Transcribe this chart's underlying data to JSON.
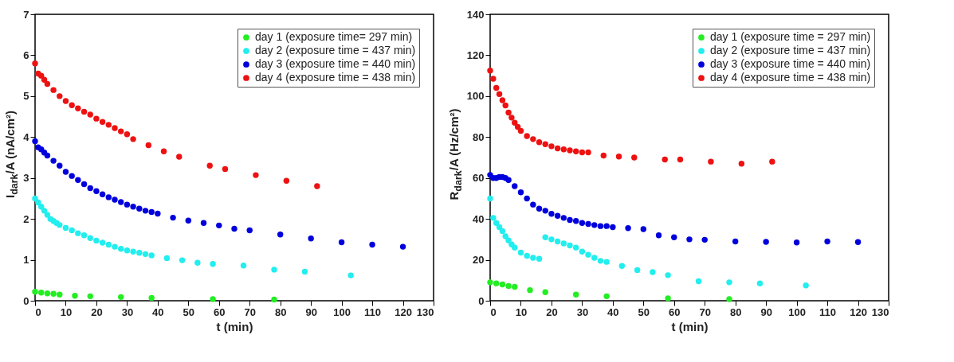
{
  "chart_data": [
    {
      "type": "scatter",
      "xlabel": "t (min)",
      "ylabel": "I$_{dark}$/A (nA/cm²)",
      "xlim": [
        0,
        130
      ],
      "xticks": [
        0,
        10,
        20,
        30,
        40,
        50,
        60,
        70,
        80,
        90,
        100,
        110,
        120,
        130
      ],
      "ylim": [
        0,
        7
      ],
      "yticks": [
        0,
        1,
        2,
        3,
        4,
        5,
        6,
        7
      ],
      "grid": false,
      "legend": "top right",
      "marker": "circle",
      "series": [
        {
          "name": "day 1 (exposure time= 297 min)",
          "color": "#22ee22",
          "x": [
            0,
            2,
            4,
            6,
            8,
            13,
            18,
            28,
            38,
            58,
            78
          ],
          "values": [
            0.22,
            0.2,
            0.18,
            0.17,
            0.15,
            0.12,
            0.11,
            0.09,
            0.07,
            0.04,
            0.03
          ]
        },
        {
          "name": "day 2 (exposure time = 437 min)",
          "color": "#22eeee",
          "x": [
            0,
            1,
            2,
            3,
            4,
            5,
            6,
            7,
            8,
            10,
            12,
            14,
            16,
            18,
            20,
            22,
            24,
            26,
            28,
            30,
            32,
            34,
            36,
            38,
            43,
            48,
            53,
            58,
            68,
            78,
            88,
            103
          ],
          "values": [
            2.5,
            2.4,
            2.3,
            2.2,
            2.1,
            2.0,
            1.95,
            1.9,
            1.85,
            1.78,
            1.72,
            1.65,
            1.6,
            1.53,
            1.47,
            1.42,
            1.37,
            1.32,
            1.27,
            1.23,
            1.2,
            1.17,
            1.14,
            1.11,
            1.04,
            0.99,
            0.93,
            0.9,
            0.86,
            0.76,
            0.71,
            0.62
          ]
        },
        {
          "name": "day 3 (exposure time = 440 min)",
          "color": "#0000dd",
          "x": [
            0,
            1,
            2,
            3,
            4,
            6,
            8,
            10,
            12,
            14,
            16,
            18,
            20,
            22,
            24,
            26,
            28,
            30,
            32,
            34,
            36,
            38,
            40,
            45,
            50,
            55,
            60,
            65,
            70,
            80,
            90,
            100,
            110,
            120
          ],
          "values": [
            3.9,
            3.75,
            3.7,
            3.62,
            3.55,
            3.42,
            3.3,
            3.15,
            3.05,
            2.95,
            2.85,
            2.75,
            2.68,
            2.6,
            2.53,
            2.47,
            2.41,
            2.35,
            2.3,
            2.25,
            2.2,
            2.17,
            2.13,
            2.03,
            1.96,
            1.9,
            1.84,
            1.76,
            1.72,
            1.62,
            1.52,
            1.43,
            1.37,
            1.32
          ]
        },
        {
          "name": "day 4 (exposure time = 438 min)",
          "color": "#ee1111",
          "x": [
            0,
            1,
            2,
            3,
            4,
            6,
            8,
            10,
            12,
            14,
            16,
            18,
            20,
            22,
            24,
            26,
            28,
            30,
            32,
            37,
            42,
            47,
            57,
            62,
            72,
            82,
            92
          ],
          "values": [
            5.8,
            5.55,
            5.5,
            5.4,
            5.3,
            5.15,
            5.0,
            4.88,
            4.78,
            4.7,
            4.62,
            4.55,
            4.45,
            4.37,
            4.3,
            4.22,
            4.14,
            4.07,
            3.95,
            3.8,
            3.65,
            3.52,
            3.3,
            3.22,
            3.07,
            2.93,
            2.8
          ]
        }
      ]
    },
    {
      "type": "scatter",
      "xlabel": "t (min)",
      "ylabel": "R$_{dark}$/A (Hz/cm²)",
      "xlim": [
        0,
        130
      ],
      "xticks": [
        0,
        10,
        20,
        30,
        40,
        50,
        60,
        70,
        80,
        90,
        100,
        110,
        120,
        130
      ],
      "ylim": [
        0,
        140
      ],
      "yticks": [
        0,
        20,
        40,
        60,
        80,
        100,
        120,
        140
      ],
      "grid": false,
      "legend": "top right",
      "marker": "circle",
      "series": [
        {
          "name": "day 1 (exposure time = 297 min)",
          "color": "#22ee22",
          "x": [
            0,
            2,
            4,
            6,
            8,
            13,
            18,
            28,
            38,
            58,
            78
          ],
          "values": [
            9,
            8.5,
            8,
            7.2,
            6.8,
            5.2,
            4.2,
            3,
            2.2,
            1.2,
            0.8
          ]
        },
        {
          "name": "day 2 (exposure time = 437 min)",
          "color": "#22eeee",
          "x": [
            0,
            1,
            2,
            3,
            4,
            5,
            6,
            7,
            8,
            10,
            12,
            14,
            16,
            18,
            20,
            22,
            24,
            26,
            28,
            30,
            32,
            34,
            36,
            38,
            43,
            48,
            53,
            58,
            68,
            78,
            88,
            103
          ],
          "values": [
            50,
            40.5,
            38,
            36,
            34,
            31.5,
            29.5,
            27.5,
            26,
            23.5,
            22,
            21,
            20.5,
            31,
            30,
            29,
            28,
            27,
            26,
            24,
            22.5,
            21,
            19.5,
            19,
            17,
            15,
            14,
            12.5,
            9.5,
            9,
            8.5,
            7.5
          ]
        },
        {
          "name": "day 3 (exposure time = 440 min)",
          "color": "#0000dd",
          "x": [
            0,
            1,
            2,
            3,
            4,
            5,
            6,
            8,
            10,
            12,
            14,
            16,
            18,
            20,
            22,
            24,
            26,
            28,
            30,
            32,
            34,
            36,
            38,
            40,
            45,
            50,
            55,
            60,
            65,
            70,
            80,
            90,
            100,
            110,
            120
          ],
          "values": [
            61.5,
            60,
            60,
            60.5,
            60.5,
            60,
            59,
            56,
            53,
            50,
            47,
            45,
            44,
            42.5,
            41.5,
            40.5,
            39.5,
            39,
            38,
            37.5,
            37,
            36.5,
            36.5,
            36,
            35.5,
            35,
            32,
            31,
            30,
            29.8,
            29,
            28.8,
            28.5,
            29,
            28.7
          ]
        },
        {
          "name": "day 4 (exposure time = 438 min)",
          "color": "#ee1111",
          "x": [
            0,
            1,
            2,
            3,
            4,
            5,
            6,
            7,
            8,
            9,
            10,
            12,
            14,
            16,
            18,
            20,
            22,
            24,
            26,
            28,
            30,
            32,
            37,
            42,
            47,
            57,
            62,
            72,
            82,
            92
          ],
          "values": [
            112.5,
            108.5,
            104,
            101,
            98,
            95.5,
            92,
            89.5,
            87,
            85,
            83,
            80.5,
            79,
            77.5,
            76.5,
            75.5,
            74.5,
            74,
            73.5,
            73,
            72.5,
            72.5,
            71,
            70.5,
            70,
            69,
            69,
            68,
            67,
            68
          ]
        }
      ]
    }
  ]
}
